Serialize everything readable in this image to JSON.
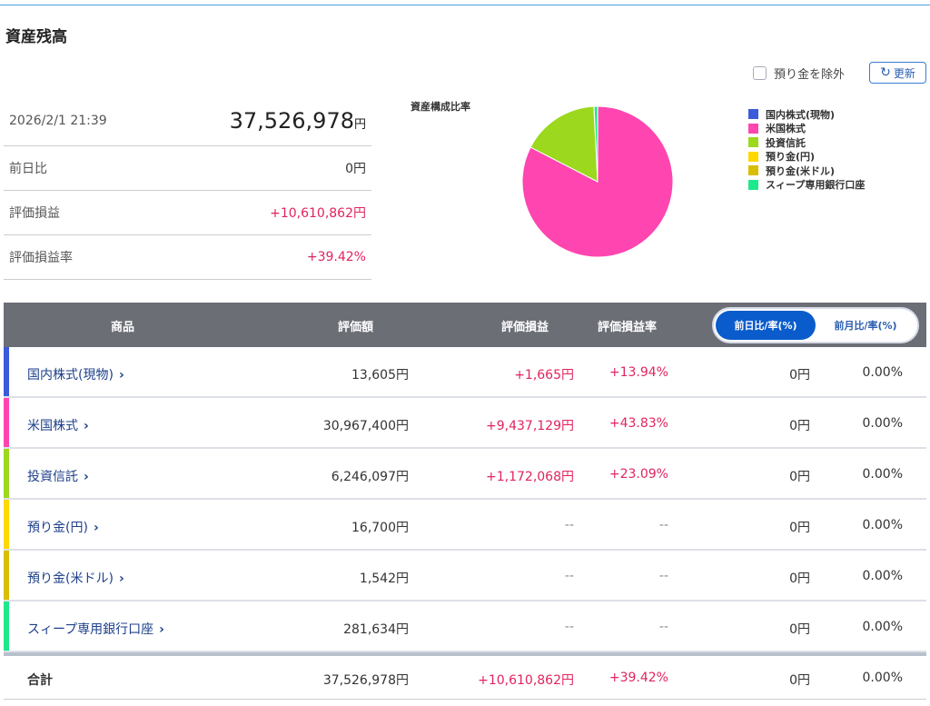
{
  "page_title": "資産残高",
  "summary": {
    "datetime": "2026/2/1 21:39",
    "total_value": "37,526,978",
    "total_unit": "円",
    "rows": [
      {
        "label": "前日比",
        "value": "0円"
      },
      {
        "label": "評価損益",
        "value": "+10,610,862円"
      },
      {
        "label": "評価損益率",
        "value": "+39.42%"
      }
    ]
  },
  "controls": {
    "exclude_deposit_label": "預り金を除外",
    "exclude_deposit_checked": false,
    "refresh_label": "更新",
    "refresh_icon": "refresh-icon"
  },
  "chart_data": {
    "type": "pie",
    "title": "資産構成比率",
    "legend_placement": "right",
    "categories": [
      "国内株式(現物)",
      "米国株式",
      "投資信託",
      "預り金(円)",
      "預り金(米ドル)",
      "スィープ専用銀行口座"
    ],
    "values": [
      13605,
      30967400,
      6246097,
      16700,
      1542,
      281634
    ],
    "colors": [
      "#3b5bdb",
      "#ff45b0",
      "#9bd81e",
      "#ffd800",
      "#d9bd00",
      "#1ee88c"
    ]
  },
  "table": {
    "headers": {
      "name": "商品",
      "value": "評価額",
      "pl": "評価損益",
      "pl_rate": "評価損益率"
    },
    "toggle": {
      "daily": "前日比/率(%)",
      "monthly": "前月比/率(%)",
      "active": "daily"
    },
    "rows": [
      {
        "name": "国内株式(現物)",
        "value": "13,605円",
        "pl": "+1,665円",
        "pl_rate": "+13.94%",
        "change": "0円",
        "change_rate": "0.00%"
      },
      {
        "name": "米国株式",
        "value": "30,967,400円",
        "pl": "+9,437,129円",
        "pl_rate": "+43.83%",
        "change": "0円",
        "change_rate": "0.00%"
      },
      {
        "name": "投資信託",
        "value": "6,246,097円",
        "pl": "+1,172,068円",
        "pl_rate": "+23.09%",
        "change": "0円",
        "change_rate": "0.00%"
      },
      {
        "name": "預り金(円)",
        "value": "16,700円",
        "pl": "--",
        "pl_rate": "--",
        "change": "0円",
        "change_rate": "0.00%"
      },
      {
        "name": "預り金(米ドル)",
        "value": "1,542円",
        "pl": "--",
        "pl_rate": "--",
        "change": "0円",
        "change_rate": "0.00%"
      },
      {
        "name": "スィープ専用銀行口座",
        "value": "281,634円",
        "pl": "--",
        "pl_rate": "--",
        "change": "0円",
        "change_rate": "0.00%"
      }
    ],
    "total": {
      "name": "合計",
      "value": "37,526,978円",
      "pl": "+10,610,862円",
      "pl_rate": "+39.42%",
      "change": "0円",
      "change_rate": "0.00%"
    }
  }
}
